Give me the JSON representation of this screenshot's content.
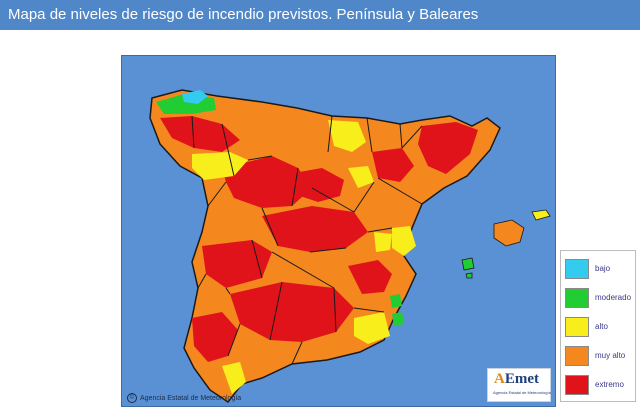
{
  "header": {
    "title": "Mapa de niveles de riesgo de incendio previstos. Península y Baleares"
  },
  "map": {
    "credit": "Agencia Estatal de Meteorología",
    "credit_symbol": "©",
    "logo": {
      "initial": "A",
      "rest": "Emet",
      "subtitle": "Agencia Estatal de Meteorología"
    },
    "colors": {
      "sea": "#5a91d4",
      "borders": "#1a1a1a",
      "bajo": "#33ccee",
      "moderado": "#22cc33",
      "alto": "#f7ee1c",
      "muy_alto": "#f5871f",
      "extremo": "#e0131a"
    }
  },
  "legend": {
    "items": [
      {
        "label": "bajo",
        "color": "#33ccee"
      },
      {
        "label": "moderado",
        "color": "#22cc33"
      },
      {
        "label": "alto",
        "color": "#f7ee1c"
      },
      {
        "label": "muy alto",
        "color": "#f5871f"
      },
      {
        "label": "extremo",
        "color": "#e0131a"
      }
    ]
  }
}
